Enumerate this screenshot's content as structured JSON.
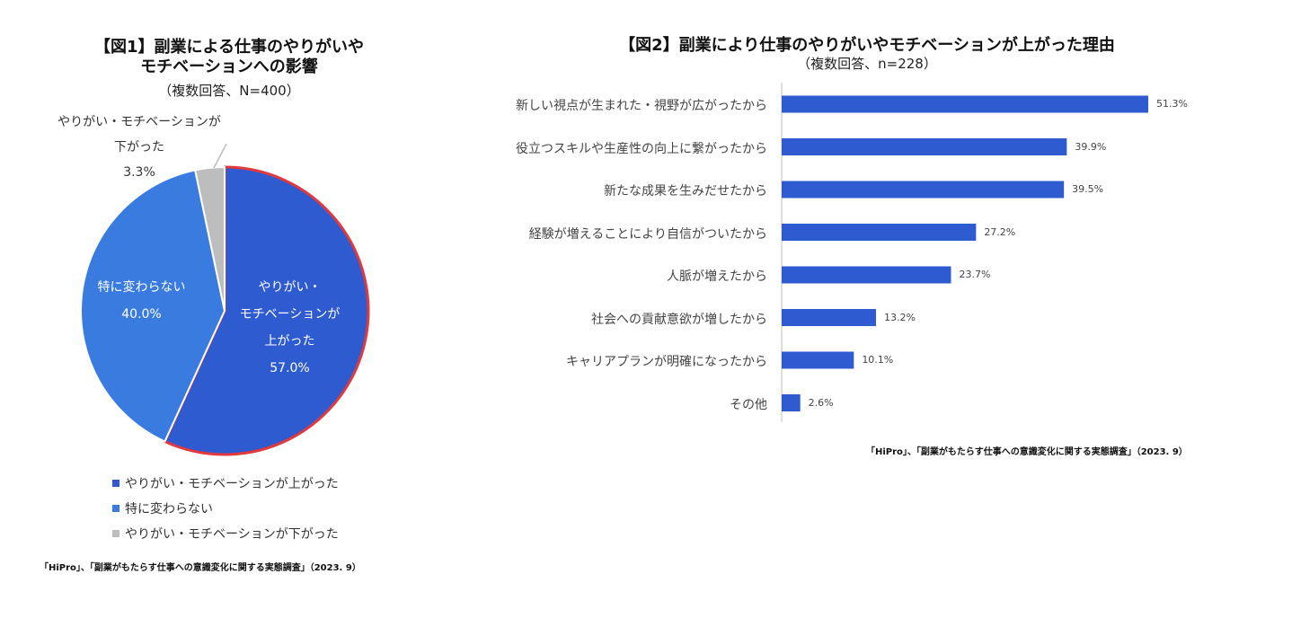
{
  "colors": {
    "up": "#2E5BCF",
    "same": "#3A7BE0",
    "down": "#BDBDBD",
    "highlight": "#E0393E",
    "bar": "#2E5BCF",
    "axis": "#BFBFBF"
  },
  "chart_data": [
    {
      "type": "pie",
      "title_line1": "【図1】副業による仕事のやりがいや",
      "title_line2": "モチベーションへの影響",
      "subtitle": "（複数回答、N=400）",
      "slices": [
        {
          "label_l1": "やりがい・",
          "label_l2": "モチベーションが",
          "label_l3": "上がった",
          "value": 57.0,
          "value_label": "57.0%"
        },
        {
          "label_l1": "特に変わらない",
          "value": 40.0,
          "value_label": "40.0%"
        },
        {
          "label_l1": "やりがい・モチベーションが",
          "label_l2": "下がった",
          "value": 3.3,
          "value_label": "3.3%"
        }
      ],
      "legend": [
        "やりがい・モチベーションが上がった",
        "特に変わらない",
        "やりがい・モチベーションが下がった"
      ],
      "source": "「HiPro」、「副業がもたらす仕事への意識変化に関する実態調査」（2023. 9）"
    },
    {
      "type": "bar",
      "orientation": "horizontal",
      "title": "【図2】副業により仕事のやりがいやモチベーションが上がった理由",
      "subtitle": "（複数回答、n=228）",
      "categories": [
        "新しい視点が生まれた・視野が広がったから",
        "役立つスキルや生産性の向上に繋がったから",
        "新たな成果を生みだせたから",
        "経験が増えることにより自信がついたから",
        "人脈が増えたから",
        "社会への貢献意欲が増したから",
        "キャリアプランが明確になったから",
        "その他"
      ],
      "values": [
        51.3,
        39.9,
        39.5,
        27.2,
        23.7,
        13.2,
        10.1,
        2.6
      ],
      "value_labels": [
        "51.3%",
        "39.9%",
        "39.5%",
        "27.2%",
        "23.7%",
        "13.2%",
        "10.1%",
        "2.6%"
      ],
      "xlim": [
        0,
        60
      ],
      "source": "「HiPro」、「副業がもたらす仕事への意識変化に関する実態調査」（2023. 9）"
    }
  ]
}
